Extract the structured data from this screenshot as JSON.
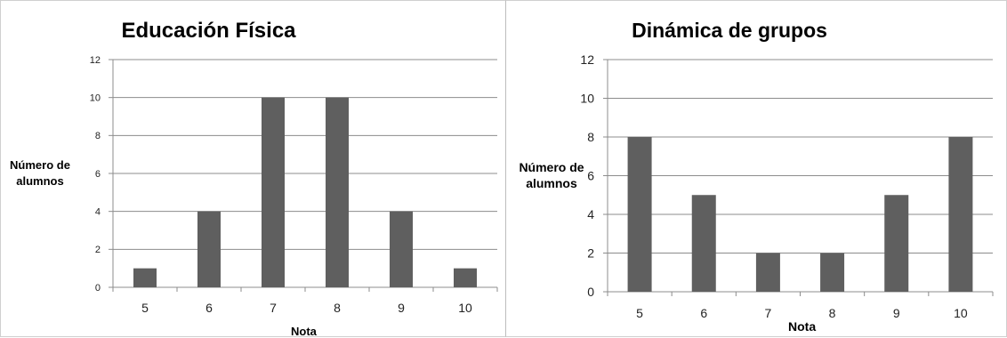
{
  "chart_data": [
    {
      "type": "bar",
      "title": "Educación Física",
      "xlabel": "Nota",
      "ylabel": "Número de alumnos",
      "categories": [
        "5",
        "6",
        "7",
        "8",
        "9",
        "10"
      ],
      "values": [
        1,
        4,
        10,
        10,
        4,
        1
      ],
      "ylim": [
        0,
        12
      ],
      "yticks": [
        "0",
        "2",
        "4",
        "6",
        "8",
        "10",
        "12"
      ],
      "grid": true,
      "bar_color": "#5f5f5f"
    },
    {
      "type": "bar",
      "title": "Dinámica de grupos",
      "xlabel": "Nota",
      "ylabel": "Número de alumnos",
      "categories": [
        "5",
        "6",
        "7",
        "8",
        "9",
        "10"
      ],
      "values": [
        8,
        5,
        2,
        2,
        5,
        8
      ],
      "ylim": [
        0,
        12
      ],
      "yticks": [
        "0",
        "2",
        "4",
        "6",
        "8",
        "10",
        "12"
      ],
      "grid": true,
      "bar_color": "#5f5f5f"
    }
  ]
}
